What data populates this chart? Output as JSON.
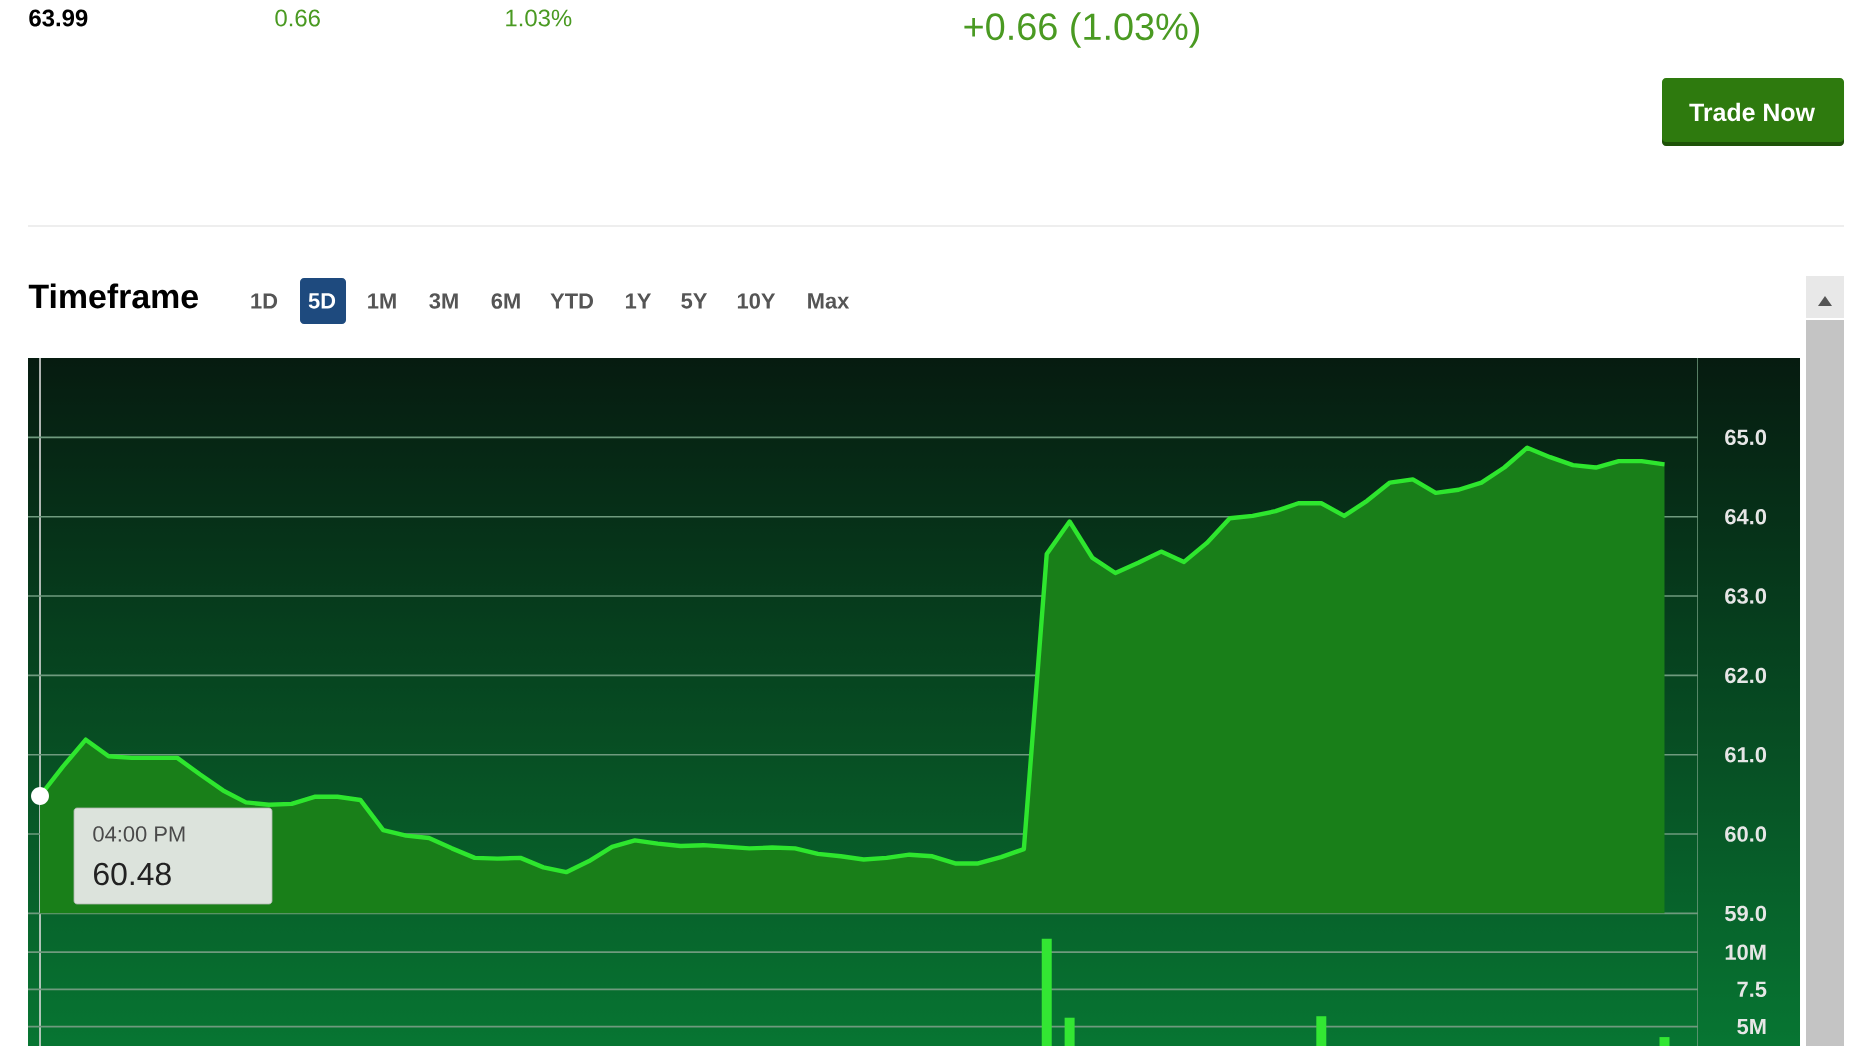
{
  "chart_data": [
    {
      "type": "area",
      "title": "Timeframe",
      "color": "#2ee62e",
      "categories": [
        null,
        null,
        null,
        null,
        null,
        null,
        null,
        null,
        null,
        null,
        null,
        null,
        null,
        null,
        null,
        null,
        null,
        null,
        null,
        null,
        null,
        null,
        null,
        null,
        null,
        null,
        null,
        null,
        null,
        null,
        null,
        null,
        null,
        null,
        null,
        null,
        null,
        null,
        null,
        null,
        null,
        null,
        null,
        null,
        null,
        null,
        null,
        null,
        null,
        null,
        null,
        null,
        null,
        null,
        null,
        null,
        null,
        null,
        null,
        null,
        null,
        null,
        null,
        null,
        null,
        null,
        null,
        null,
        null,
        null,
        null,
        null
      ],
      "values": [
        60.48,
        60.85,
        61.19,
        60.98,
        60.96,
        60.96,
        60.96,
        60.75,
        60.55,
        60.4,
        60.37,
        60.38,
        60.47,
        60.47,
        60.43,
        60.05,
        59.98,
        59.95,
        59.82,
        59.7,
        59.69,
        59.7,
        59.58,
        59.52,
        59.66,
        59.84,
        59.92,
        59.88,
        59.85,
        59.86,
        59.84,
        59.82,
        59.83,
        59.82,
        59.75,
        59.72,
        59.68,
        59.7,
        59.74,
        59.72,
        59.63,
        59.63,
        59.71,
        59.81,
        63.53,
        63.94,
        63.48,
        63.29,
        63.42,
        63.56,
        63.43,
        63.67,
        63.98,
        64.01,
        64.07,
        64.17,
        64.17,
        64.01,
        64.2,
        64.43,
        64.47,
        64.3,
        64.34,
        64.43,
        64.62,
        64.87,
        64.75,
        64.65,
        64.62,
        64.7,
        64.7,
        64.66
      ],
      "ylim": [
        59,
        66
      ],
      "yticks": [
        {
          "value": 59,
          "label": "59.0"
        },
        {
          "value": 60,
          "label": "60.0"
        },
        {
          "value": 61,
          "label": "61.0"
        },
        {
          "value": 62,
          "label": "62.0"
        },
        {
          "value": 63,
          "label": "63.0"
        },
        {
          "value": 64,
          "label": "64.0"
        },
        {
          "value": 65,
          "label": "65.0"
        }
      ],
      "grid": "y",
      "tick_labels": "y",
      "annotations": [
        "63.99",
        "0.66",
        "1.03%",
        "+0.66 (1.03%)",
        "Trade Now",
        "1D",
        "5D",
        "1M",
        "3M",
        "6M",
        "YTD",
        "1Y",
        "5Y",
        "10Y",
        "Max",
        "04:00 PM",
        "60.48"
      ]
    },
    {
      "type": "bar",
      "color": "#33e633",
      "categories": [
        null,
        null,
        null,
        null,
        null,
        null,
        null,
        null,
        null,
        null,
        null,
        null,
        null,
        null,
        null,
        null,
        null,
        null,
        null,
        null,
        null,
        null,
        null,
        null,
        null,
        null,
        null,
        null,
        null,
        null,
        null,
        null,
        null,
        null,
        null,
        null,
        null,
        null,
        null,
        null,
        null,
        null,
        null,
        null,
        null,
        null,
        null,
        null,
        null,
        null,
        null,
        null,
        null,
        null,
        null,
        null,
        null,
        null,
        null,
        null,
        null,
        null,
        null,
        null,
        null,
        null,
        null,
        null,
        null,
        null,
        null,
        null
      ],
      "values": [
        null,
        null,
        null,
        null,
        null,
        null,
        null,
        null,
        null,
        null,
        null,
        null,
        null,
        null,
        null,
        null,
        null,
        null,
        null,
        null,
        null,
        null,
        null,
        null,
        null,
        null,
        null,
        null,
        null,
        null,
        null,
        null,
        null,
        null,
        null,
        null,
        null,
        null,
        null,
        null,
        null,
        null,
        null,
        null,
        10.9,
        5.6,
        null,
        null,
        null,
        null,
        null,
        null,
        null,
        null,
        null,
        null,
        5.7,
        null,
        null,
        null,
        null,
        null,
        null,
        null,
        null,
        null,
        null,
        null,
        null,
        null,
        null,
        4.3
      ],
      "ylim": [
        3.7,
        12.6
      ],
      "yticks": [
        {
          "value": 5,
          "label": "5M"
        },
        7.5,
        {
          "value": 10,
          "label": "10M"
        }
      ],
      "grid": "y",
      "tick_labels": "y"
    }
  ]
}
